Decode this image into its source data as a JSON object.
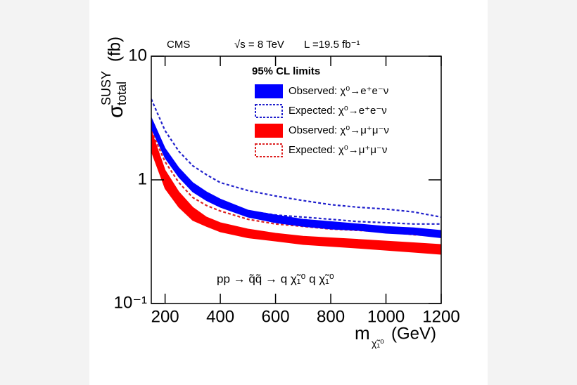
{
  "chart_data": {
    "type": "band",
    "experiment": "CMS",
    "energy": "√s = 8 TeV",
    "luminosity": "L =19.5 fb⁻¹",
    "y_label": {
      "symbol": "σ",
      "sub": "total",
      "sup": "SUSY",
      "unit": "(fb)"
    },
    "x_label": {
      "symbol": "m",
      "sub": "χ̃₁⁰",
      "unit": "(GeV)"
    },
    "legend_title": "95% CL limits",
    "annotation": "pp → q̃q̃ → q χ̃₁⁰ q χ̃₁⁰",
    "log_y": true,
    "xlim": [
      150,
      1200
    ],
    "ylim": [
      0.1,
      10
    ],
    "xticks": [
      200,
      400,
      600,
      800,
      1000,
      1200
    ],
    "yticks": [
      {
        "value": 0.1,
        "label": "10⁻¹"
      },
      1,
      10
    ],
    "x": [
      150,
      200,
      250,
      300,
      350,
      400,
      500,
      600,
      700,
      800,
      900,
      1000,
      1100,
      1200
    ],
    "series": [
      {
        "name": "Observed: χ⁰→e⁺e⁻ν",
        "color": "#0000ff",
        "style": "filled",
        "lower": [
          2.6,
          1.5,
          1.05,
          0.8,
          0.68,
          0.6,
          0.5,
          0.45,
          0.42,
          0.4,
          0.39,
          0.37,
          0.36,
          0.34
        ],
        "upper": [
          3.2,
          1.8,
          1.25,
          0.95,
          0.8,
          0.7,
          0.57,
          0.52,
          0.48,
          0.46,
          0.44,
          0.42,
          0.41,
          0.39
        ]
      },
      {
        "name": "Expected: χ⁰→e⁺e⁻ν",
        "color": "#2020cc",
        "style": "dashed",
        "lower": [
          3.0,
          1.6,
          1.1,
          0.85,
          0.72,
          0.64,
          0.56,
          0.52,
          0.5,
          0.48,
          0.46,
          0.45,
          0.44,
          0.44
        ],
        "upper": [
          4.5,
          2.5,
          1.7,
          1.3,
          1.1,
          0.95,
          0.82,
          0.74,
          0.68,
          0.63,
          0.6,
          0.58,
          0.55,
          0.5
        ]
      },
      {
        "name": "Observed: χ⁰→μ⁺μ⁻ν",
        "color": "#ff0000",
        "style": "filled",
        "lower": [
          1.7,
          0.85,
          0.6,
          0.47,
          0.42,
          0.38,
          0.34,
          0.32,
          0.3,
          0.29,
          0.28,
          0.27,
          0.26,
          0.25
        ],
        "upper": [
          2.5,
          1.2,
          0.8,
          0.6,
          0.5,
          0.45,
          0.4,
          0.37,
          0.35,
          0.34,
          0.33,
          0.32,
          0.31,
          0.3
        ]
      },
      {
        "name": "Expected: χ⁰→μ⁺μ⁻ν",
        "color": "#dd2222",
        "style": "dashed",
        "lower": [
          2.5,
          1.4,
          0.95,
          0.72,
          0.62,
          0.56,
          0.48,
          0.44,
          0.42,
          0.4,
          0.39,
          0.38,
          0.36,
          0.35
        ],
        "upper": [
          2.9,
          1.7,
          1.15,
          0.85,
          0.72,
          0.64,
          0.54,
          0.48,
          0.45,
          0.43,
          0.42,
          0.41,
          0.4,
          0.38
        ]
      }
    ]
  }
}
